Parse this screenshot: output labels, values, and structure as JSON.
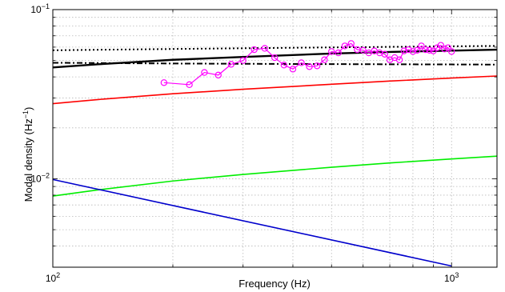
{
  "chart_data": {
    "type": "line",
    "xlabel": "Frequency (Hz)",
    "ylabel": "Modal density (Hz",
    "ylabel_superscript": "−1",
    "ylabel_suffix": ")",
    "x_scale": "log",
    "y_scale": "log",
    "xlim": [
      100,
      1300
    ],
    "ylim": [
      0.003,
      0.1
    ],
    "grid": true,
    "x_ticks": [
      {
        "base": "10",
        "exponent": "2",
        "value": 100
      },
      {
        "base": "10",
        "exponent": "3",
        "value": 1000
      }
    ],
    "y_ticks": [
      {
        "base": "10",
        "exponent": "−2",
        "value": 0.01
      },
      {
        "base": "10",
        "exponent": "−1",
        "value": 0.1
      }
    ],
    "series": [
      {
        "color": "#000000",
        "style": "dotted",
        "x": [
          100,
          200,
          400,
          700,
          1000,
          1300
        ],
        "y": [
          0.0575,
          0.0585,
          0.0595,
          0.0602,
          0.0607,
          0.061
        ]
      },
      {
        "color": "#000000",
        "style": "solid",
        "x": [
          100,
          130,
          200,
          300,
          500,
          700,
          1000,
          1300
        ],
        "y": [
          0.0455,
          0.0475,
          0.0505,
          0.0525,
          0.055,
          0.0562,
          0.0572,
          0.058
        ]
      },
      {
        "color": "#000000",
        "style": "dash-dot",
        "x": [
          100,
          200,
          400,
          700,
          1000,
          1300
        ],
        "y": [
          0.0485,
          0.048,
          0.0477,
          0.0475,
          0.0474,
          0.0473
        ]
      },
      {
        "color": "#ff0000",
        "style": "solid",
        "x": [
          100,
          130,
          200,
          300,
          500,
          700,
          1000,
          1300
        ],
        "y": [
          0.0278,
          0.0294,
          0.0318,
          0.0338,
          0.0362,
          0.0378,
          0.0394,
          0.0405
        ]
      },
      {
        "color": "#00ee00",
        "style": "solid",
        "x": [
          100,
          130,
          200,
          300,
          500,
          700,
          1000,
          1300
        ],
        "y": [
          0.0079,
          0.0086,
          0.0097,
          0.0106,
          0.0117,
          0.0124,
          0.0131,
          0.0136
        ]
      },
      {
        "color": "#0000cc",
        "style": "solid",
        "x": [
          100,
          1000
        ],
        "y": [
          0.0099,
          0.00305
        ]
      },
      {
        "color": "#ff00ff",
        "style": "line-marker",
        "marker": "circle",
        "x": [
          190,
          220,
          240,
          260,
          280,
          300,
          320,
          340,
          360,
          380,
          400,
          420,
          440,
          460,
          480,
          500,
          520,
          540,
          560,
          580,
          600,
          620,
          640,
          660,
          680,
          700,
          720,
          740,
          760,
          780,
          800,
          820,
          840,
          860,
          880,
          900,
          920,
          940,
          960,
          980,
          1000
        ],
        "y": [
          0.037,
          0.036,
          0.0425,
          0.041,
          0.0475,
          0.05,
          0.058,
          0.059,
          0.052,
          0.047,
          0.0445,
          0.0485,
          0.046,
          0.0465,
          0.0505,
          0.0565,
          0.0555,
          0.061,
          0.063,
          0.058,
          0.0575,
          0.0555,
          0.057,
          0.0555,
          0.0545,
          0.0505,
          0.052,
          0.0505,
          0.057,
          0.058,
          0.0565,
          0.0575,
          0.061,
          0.058,
          0.0575,
          0.057,
          0.0595,
          0.0615,
          0.0585,
          0.0595,
          0.0565
        ]
      }
    ]
  }
}
